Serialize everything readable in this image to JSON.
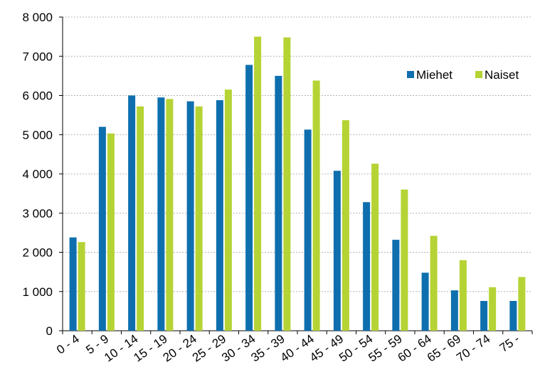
{
  "chart_data": {
    "type": "bar",
    "title": "",
    "xlabel": "",
    "ylabel": "",
    "categories": [
      "0 - 4",
      "5 - 9",
      "10 - 14",
      "15 - 19",
      "20 - 24",
      "25 - 29",
      "30 - 34",
      "35 - 39",
      "40 - 44",
      "45 - 49",
      "50 - 54",
      "55 - 59",
      "60 - 64",
      "65 - 69",
      "70 - 74",
      "75 -"
    ],
    "series": [
      {
        "name": "Miehet",
        "color": "#0f6fae",
        "values": [
          2380,
          5200,
          6000,
          5950,
          5850,
          5880,
          6780,
          6500,
          5130,
          4080,
          3280,
          2320,
          1480,
          1030,
          760,
          760
        ]
      },
      {
        "name": "Naiset",
        "color": "#b5d334",
        "values": [
          2260,
          5030,
          5720,
          5910,
          5720,
          6150,
          7500,
          7480,
          6380,
          5370,
          4260,
          3600,
          2420,
          1800,
          1110,
          1370
        ]
      }
    ],
    "ylim": [
      0,
      8000
    ],
    "yticks": [
      0,
      1000,
      2000,
      3000,
      4000,
      5000,
      6000,
      7000,
      8000
    ],
    "ytick_labels": [
      "0",
      "1 000",
      "2 000",
      "3 000",
      "4 000",
      "5 000",
      "6 000",
      "7 000",
      "8 000"
    ],
    "grid": true,
    "legend_position": "top-right"
  }
}
